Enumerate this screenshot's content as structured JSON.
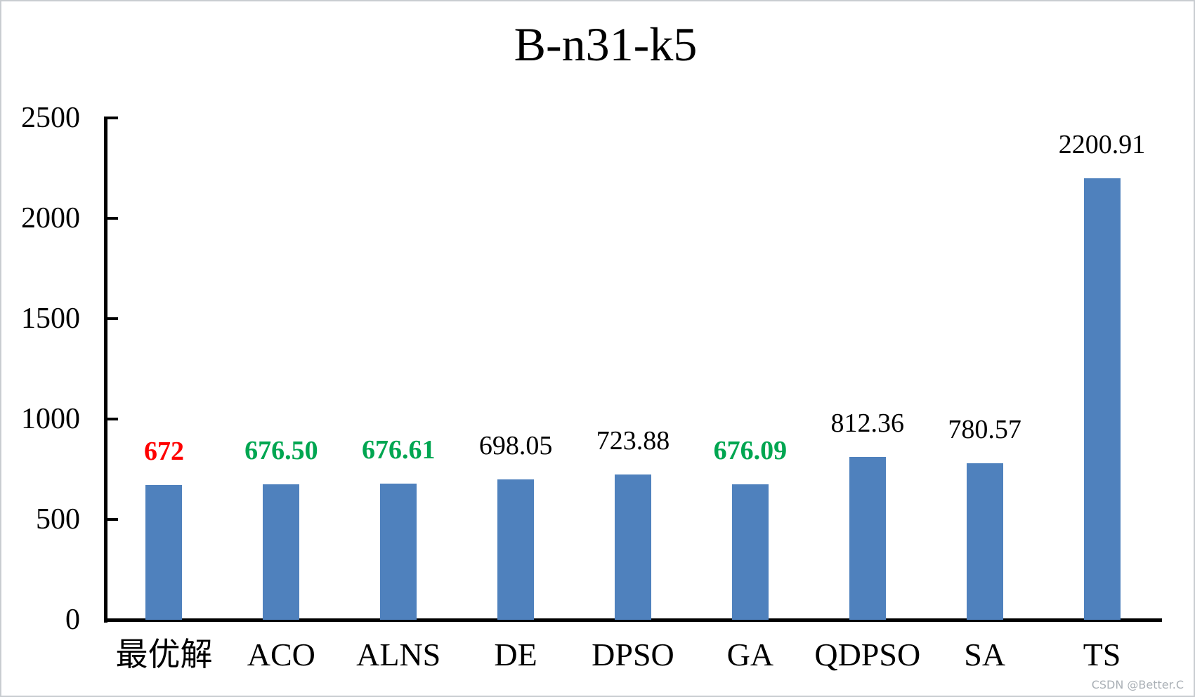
{
  "watermark": "CSDN @Better.C",
  "chart_data": {
    "type": "bar",
    "title": "B-n31-k5",
    "categories": [
      "最优解",
      "ACO",
      "ALNS",
      "DE",
      "DPSO",
      "GA",
      "QDPSO",
      "SA",
      "TS"
    ],
    "values": [
      672,
      676.5,
      676.61,
      698.05,
      723.88,
      676.09,
      812.36,
      780.57,
      2200.91
    ],
    "data_labels": [
      "672",
      "676.50",
      "676.61",
      "698.05",
      "723.88",
      "676.09",
      "812.36",
      "780.57",
      "2200.91"
    ],
    "label_colors": [
      "#ff0000",
      "#00a651",
      "#00a651",
      "#000000",
      "#000000",
      "#00a651",
      "#000000",
      "#000000",
      "#000000"
    ],
    "label_bold": [
      true,
      true,
      true,
      false,
      false,
      true,
      false,
      false,
      false
    ],
    "bar_color": "#4f81bd",
    "axis_color": "#000000",
    "xlabel": "",
    "ylabel": "",
    "ylim": [
      0,
      2500
    ],
    "yticks": [
      0,
      500,
      1000,
      1500,
      2000,
      2500
    ],
    "ytick_labels": [
      "0",
      "500",
      "1000",
      "1500",
      "2000",
      "2500"
    ],
    "grid": false,
    "legend_position": "none"
  }
}
